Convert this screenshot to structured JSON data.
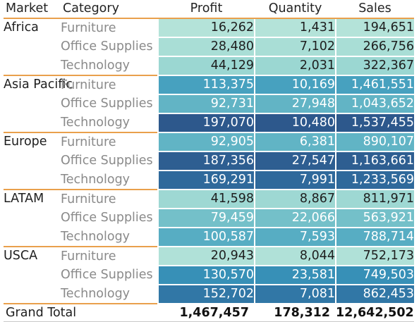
{
  "chart_data": {
    "type": "heatmap",
    "title": "",
    "row_header": "Market",
    "category_header": "Category",
    "columns": [
      "Profit",
      "Quantity",
      "Sales"
    ],
    "color_measure_note": "cell shading by Profit",
    "color_scale": {
      "low": "#b4e3d9",
      "high": "#2d5b90"
    },
    "rows": [
      {
        "market": "Africa",
        "category": "Furniture",
        "profit": 16262,
        "quantity": 1431,
        "sales": 194651
      },
      {
        "market": "Africa",
        "category": "Office Supplies",
        "profit": 28480,
        "quantity": 7102,
        "sales": 266756
      },
      {
        "market": "Africa",
        "category": "Technology",
        "profit": 44129,
        "quantity": 2031,
        "sales": 322367
      },
      {
        "market": "Asia Pacific",
        "category": "Furniture",
        "profit": 113375,
        "quantity": 10169,
        "sales": 1461551
      },
      {
        "market": "Asia Pacific",
        "category": "Office Supplies",
        "profit": 92731,
        "quantity": 27948,
        "sales": 1043652
      },
      {
        "market": "Asia Pacific",
        "category": "Technology",
        "profit": 197070,
        "quantity": 10480,
        "sales": 1537455
      },
      {
        "market": "Europe",
        "category": "Furniture",
        "profit": 92905,
        "quantity": 6381,
        "sales": 890107
      },
      {
        "market": "Europe",
        "category": "Office Supplies",
        "profit": 187356,
        "quantity": 27547,
        "sales": 1163661
      },
      {
        "market": "Europe",
        "category": "Technology",
        "profit": 169291,
        "quantity": 7991,
        "sales": 1233569
      },
      {
        "market": "LATAM",
        "category": "Furniture",
        "profit": 41598,
        "quantity": 8867,
        "sales": 811971
      },
      {
        "market": "LATAM",
        "category": "Office Supplies",
        "profit": 79459,
        "quantity": 22066,
        "sales": 563921
      },
      {
        "market": "LATAM",
        "category": "Technology",
        "profit": 100587,
        "quantity": 7593,
        "sales": 788714
      },
      {
        "market": "USCA",
        "category": "Furniture",
        "profit": 20943,
        "quantity": 8044,
        "sales": 752173
      },
      {
        "market": "USCA",
        "category": "Office Supplies",
        "profit": 130570,
        "quantity": 23581,
        "sales": 749503
      },
      {
        "market": "USCA",
        "category": "Technology",
        "profit": 152702,
        "quantity": 7081,
        "sales": 862453
      }
    ],
    "grand_total": {
      "label": "Grand Total",
      "profit": 1467457,
      "quantity": 178312,
      "sales": 12642502
    }
  }
}
